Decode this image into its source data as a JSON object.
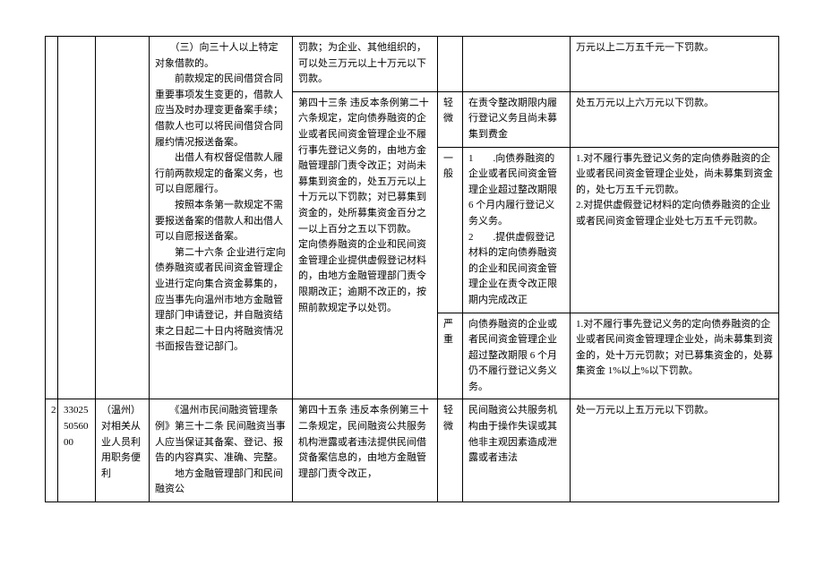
{
  "table": {
    "row1": {
      "c3": "　　（三）向三十人以上特定对象借款的。\n　　前款规定的民间借贷合同重要事项发生变更的，借款人应当及时办理变更备案手续；借款人也可以将民间借贷合同履约情况报送备案。\n　　出借人有权督促借款人履行前两款规定的备案义务，也可以自愿履行。\n　　按照本条第一款规定不需要报送备案的借款人和出借人可以自愿报送备案。\n　　第二十六条 企业进行定向债券融资或者民间资金管理企业进行定向集合资金募集的，应当事先向温州市地方金融管理部门申请登记，并自融资结束之日起二十日内将融资情况书面报告登记部门。",
      "c4a": "罚款；为企业、其他组织的，可以处三万元以上十万元以下罚款。",
      "c7a": "万元以上二万五千元一下罚款。",
      "c4b": "第四十三条 违反本条例第二十六条规定，定向债券融资的企业或者民间资金管理企业不履行事先登记义务的，由地方金融管理部门责令改正；对尚未募集到资金的，处五万元以上十万元以下罚款；对已募集到资金的，处所募集资金百分之一以上百分之五以下罚款。\n定向债券融资的企业和民间资金管理企业提供虚假登记材料的，由地方金融管理部门责令限期改正；逾期不改正的，按照前款规定予以处罚。",
      "c5b": "轻微",
      "c6b": "在责令整改期限内履行登记义务且尚未募集到费金",
      "c7b": "处五万元以上六万元以下罚款。",
      "c5c": "一般",
      "c6c": "1　　.向债券融资的企业或者民间资金管理企业超过整改期限 6 个月内履行登记义务义务。\n2　　.提供虚假登记材料的定向债券融资的企业和民间资金管理企业在责令改正限期内完成改正",
      "c7c": "1.对不履行事先登记义务的定向债券融资的企业或者民间资金管理企业处，尚未募集到资金的，处七万五千元罚款。\n2.对提供虚假登记材料的定向债券融资的企业或者民间资金管理企业处七万五千元罚款。",
      "c5d": "严重",
      "c6d": "向债券融资的企业或者民间资金管理企业超过整改期限 6 个月仍不履行登记义务义务。",
      "c7d": "1.对不履行事先登记义务的定向债券融资的企业或者民间资金管理理企业处，尚未募集到资金的，处十万元罚款；对已募集资金的，处募集资金 1%以上%以下罚款。"
    },
    "row2": {
      "c0": "2",
      "c1": "33025\n50560\n00",
      "c2": "（温州）对相关从业人员利用职务便利",
      "c3": "　　《温州市民间融资管理条例》第三十二条 民间融资当事人应当保证其备案、登记、报告的内容真实、准确、完整。\n　　地方金融管理部门和民间融资公",
      "c4": "第四十五条 违反本条例第三十二条规定，民间融资公共服务机构泄露或者违法提供民间借贷备案信息的，由地方金融管理部门责令改正，",
      "c5": "轻微",
      "c6": "民间融资公共服务机构由于操作失误或其他非主观因素造成泄露或者违法",
      "c7": "处一万元以上五万元以下罚款。"
    }
  }
}
